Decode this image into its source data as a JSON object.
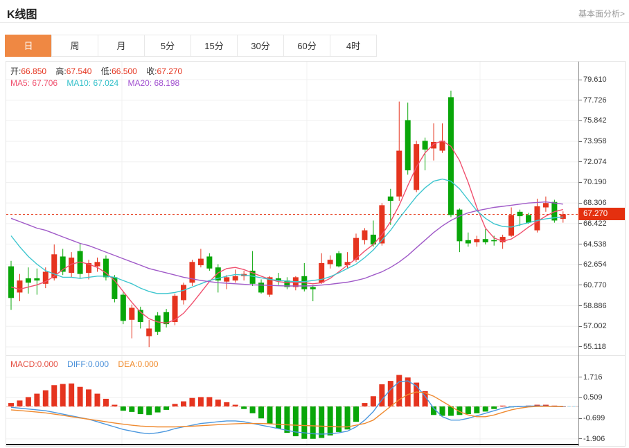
{
  "header": {
    "title": "K线图",
    "link": "基本面分析>"
  },
  "tabs": {
    "items": [
      "日",
      "周",
      "月",
      "5分",
      "15分",
      "30分",
      "60分",
      "4时"
    ],
    "selected_index": 0
  },
  "ohlc": {
    "o_label": "开:",
    "o": "66.850",
    "h_label": "高:",
    "h": "67.540",
    "l_label": "低:",
    "l": "66.500",
    "c_label": "收:",
    "c": "67.270"
  },
  "ma_legend": {
    "ma5_label": "MA5:",
    "ma5": "67.706",
    "ma10_label": "MA10:",
    "ma10": "67.024",
    "ma20_label": "MA20:",
    "ma20": "68.198"
  },
  "macd_legend": {
    "macd_label": "MACD:",
    "macd": "0.000",
    "diff_label": "DIFF:",
    "diff": "0.000",
    "dea_label": "DEA:",
    "dea": "0.000"
  },
  "price_axis": {
    "labels": [
      "79.610",
      "77.726",
      "75.842",
      "73.958",
      "72.074",
      "70.190",
      "68.306",
      "66.422",
      "64.538",
      "62.654",
      "60.770",
      "58.886",
      "57.002",
      "55.118"
    ],
    "current_price": "67.270"
  },
  "macd_axis": {
    "labels": [
      "1.716",
      "0.509",
      "-0.699",
      "-1.906"
    ]
  },
  "colors": {
    "up": "#e5341f",
    "down": "#09a609",
    "tag": "#e4300f",
    "ma5": "#f0506e",
    "ma10": "#3ec6cf",
    "ma20": "#a05ac8",
    "diff": "#4a97de",
    "dea": "#ef8a30",
    "tab_accent": "#ef8843",
    "grid": "#f0f0f0",
    "dash_blue": "#8fd0e8"
  },
  "chart_data": {
    "type": "candlestick+macd",
    "title": "K线图",
    "period_selected": "日",
    "main": {
      "ylim": [
        54.4,
        81.2
      ],
      "yticks": [
        79.61,
        77.726,
        75.842,
        73.958,
        72.074,
        70.19,
        68.306,
        66.422,
        64.538,
        62.654,
        60.77,
        58.886,
        57.002,
        55.118
      ],
      "current_price": 67.27,
      "last_ohlc": {
        "open": 66.85,
        "high": 67.54,
        "low": 66.5,
        "close": 67.27
      },
      "ma_last": {
        "ma5": 67.706,
        "ma10": 67.024,
        "ma20": 68.198
      },
      "candles": [
        [
          62.5,
          63.0,
          58.5,
          59.6
        ],
        [
          60.1,
          61.8,
          59.3,
          61.2
        ],
        [
          61.4,
          62.4,
          60.0,
          61.0
        ],
        [
          61.4,
          62.3,
          59.9,
          61.2
        ],
        [
          60.9,
          62.4,
          60.5,
          62.0
        ],
        [
          61.4,
          64.5,
          61.2,
          63.6
        ],
        [
          63.4,
          64.1,
          61.7,
          62.0
        ],
        [
          61.9,
          63.8,
          61.5,
          63.3
        ],
        [
          63.9,
          64.6,
          61.4,
          61.8
        ],
        [
          61.9,
          63.1,
          61.3,
          62.8
        ],
        [
          62.5,
          63.3,
          62.0,
          62.9
        ],
        [
          63.2,
          63.5,
          61.2,
          61.5
        ],
        [
          61.5,
          61.7,
          59.2,
          59.5
        ],
        [
          59.9,
          60.1,
          57.2,
          57.5
        ],
        [
          57.6,
          59.0,
          55.9,
          58.7
        ],
        [
          58.5,
          58.8,
          56.8,
          57.4
        ],
        [
          56.1,
          57.6,
          55.1,
          56.8
        ],
        [
          58.0,
          58.3,
          56.2,
          56.5
        ],
        [
          58.3,
          58.6,
          56.9,
          57.2
        ],
        [
          57.4,
          60.0,
          57.1,
          59.8
        ],
        [
          59.4,
          61.0,
          59.0,
          60.8
        ],
        [
          61.0,
          63.1,
          60.7,
          62.9
        ],
        [
          62.6,
          64.1,
          62.4,
          63.2
        ],
        [
          63.4,
          63.7,
          62.1,
          62.3
        ],
        [
          62.4,
          62.7,
          60.1,
          61.2
        ],
        [
          61.1,
          61.7,
          60.4,
          61.5
        ],
        [
          61.2,
          62.2,
          61.0,
          61.6
        ],
        [
          61.6,
          62.1,
          61.2,
          61.8
        ],
        [
          62.1,
          63.9,
          60.7,
          60.9
        ],
        [
          61.0,
          61.3,
          60.0,
          60.1
        ],
        [
          59.9,
          61.6,
          59.7,
          61.5
        ],
        [
          61.4,
          61.9,
          60.8,
          61.2
        ],
        [
          61.2,
          61.5,
          60.4,
          60.6
        ],
        [
          60.6,
          61.6,
          60.3,
          61.5
        ],
        [
          61.6,
          62.8,
          60.2,
          60.4
        ],
        [
          60.6,
          60.8,
          59.3,
          60.4
        ],
        [
          61.0,
          63.7,
          60.9,
          62.8
        ],
        [
          62.7,
          63.5,
          62.3,
          63.1
        ],
        [
          63.7,
          63.9,
          62.4,
          62.5
        ],
        [
          62.6,
          63.8,
          62.3,
          62.9
        ],
        [
          63.1,
          65.5,
          62.9,
          65.1
        ],
        [
          64.9,
          66.0,
          64.5,
          65.8
        ],
        [
          65.4,
          66.7,
          64.3,
          64.5
        ],
        [
          64.6,
          68.3,
          64.4,
          68.1
        ],
        [
          68.9,
          69.6,
          66.3,
          68.5
        ],
        [
          68.9,
          77.6,
          68.5,
          73.1
        ],
        [
          75.9,
          77.5,
          70.9,
          71.3
        ],
        [
          69.5,
          74.0,
          69.3,
          73.7
        ],
        [
          74.0,
          74.3,
          71.3,
          73.2
        ],
        [
          73.3,
          75.6,
          72.2,
          73.9
        ],
        [
          73.1,
          75.6,
          72.9,
          74.0
        ],
        [
          78.0,
          78.6,
          67.0,
          67.2
        ],
        [
          67.7,
          67.8,
          63.8,
          64.8
        ],
        [
          64.9,
          65.6,
          64.3,
          64.6
        ],
        [
          64.7,
          65.3,
          64.3,
          65.0
        ],
        [
          65.0,
          65.9,
          64.5,
          64.7
        ],
        [
          64.9,
          65.3,
          64.4,
          64.8
        ],
        [
          64.7,
          65.4,
          64.1,
          65.2
        ],
        [
          65.3,
          67.9,
          65.2,
          67.2
        ],
        [
          67.5,
          67.7,
          66.2,
          67.1
        ],
        [
          67.2,
          67.4,
          66.4,
          66.5
        ],
        [
          65.8,
          68.7,
          65.6,
          68.0
        ],
        [
          67.9,
          68.9,
          67.5,
          68.3
        ],
        [
          68.4,
          68.6,
          66.5,
          66.7
        ],
        [
          66.85,
          67.54,
          66.5,
          67.27
        ]
      ],
      "ma5": [
        60.6,
        60.4,
        60.6,
        60.8,
        61.1,
        61.6,
        62.2,
        62.7,
        62.9,
        62.7,
        62.4,
        61.9,
        61.2,
        60.2,
        59.2,
        58.3,
        57.7,
        57.4,
        57.3,
        57.6,
        58.2,
        59.1,
        60.1,
        61.1,
        61.9,
        62.3,
        62.4,
        62.2,
        61.9,
        61.6,
        61.3,
        61.1,
        61.0,
        61.0,
        61.0,
        60.9,
        61.0,
        61.4,
        62.0,
        62.6,
        63.2,
        63.9,
        64.5,
        65.4,
        66.6,
        68.1,
        69.9,
        71.6,
        72.9,
        73.7,
        74.0,
        73.5,
        72.2,
        70.2,
        67.9,
        66.0,
        65.1,
        64.8,
        65.0,
        65.5,
        66.1,
        66.6,
        67.1,
        67.5,
        67.706
      ],
      "ma10": [
        65.3,
        64.3,
        63.4,
        62.7,
        62.1,
        61.8,
        61.5,
        61.5,
        61.4,
        61.5,
        61.6,
        61.6,
        61.5,
        61.2,
        60.9,
        60.5,
        60.2,
        60.0,
        60.0,
        60.1,
        60.3,
        60.6,
        60.9,
        61.2,
        61.4,
        61.6,
        61.75,
        61.7,
        61.6,
        61.45,
        61.3,
        61.2,
        61.15,
        61.1,
        61.1,
        61.2,
        61.3,
        61.55,
        61.9,
        62.3,
        62.7,
        63.3,
        64.0,
        64.9,
        65.8,
        66.9,
        67.9,
        68.9,
        69.7,
        70.3,
        70.5,
        70.3,
        69.6,
        68.6,
        67.6,
        66.9,
        66.4,
        66.15,
        66.1,
        66.3,
        66.5,
        66.7,
        66.85,
        66.95,
        67.024
      ],
      "ma20": [
        66.9,
        66.6,
        66.3,
        66.0,
        65.8,
        65.5,
        65.2,
        64.9,
        64.6,
        64.4,
        64.1,
        63.8,
        63.5,
        63.2,
        62.9,
        62.6,
        62.3,
        62.1,
        61.9,
        61.7,
        61.5,
        61.35,
        61.2,
        61.1,
        61.0,
        60.95,
        60.9,
        60.85,
        60.8,
        60.78,
        60.75,
        60.72,
        60.7,
        60.7,
        60.7,
        60.72,
        60.78,
        60.85,
        60.95,
        61.05,
        61.2,
        61.4,
        61.7,
        62.0,
        62.4,
        62.9,
        63.5,
        64.2,
        64.9,
        65.6,
        66.2,
        66.7,
        67.1,
        67.4,
        67.6,
        67.75,
        67.9,
        68.0,
        68.1,
        68.2,
        68.3,
        68.35,
        68.4,
        68.3,
        68.198
      ]
    },
    "macd": {
      "ylim": [
        -2.45,
        3.0
      ],
      "yticks": [
        1.716,
        0.509,
        -0.699,
        -1.906
      ],
      "last_values": {
        "macd": 0.0,
        "diff": 0.0,
        "dea": 0.0
      },
      "histogram": [
        0.2,
        0.35,
        0.55,
        0.75,
        0.95,
        1.25,
        1.32,
        1.35,
        1.15,
        1.0,
        0.75,
        0.45,
        0.1,
        -0.25,
        -0.32,
        -0.45,
        -0.5,
        -0.35,
        -0.2,
        0.15,
        0.3,
        0.5,
        0.55,
        0.55,
        0.4,
        0.25,
        0.1,
        -0.15,
        -0.4,
        -0.7,
        -1.0,
        -1.3,
        -1.55,
        -1.75,
        -1.9,
        -1.9,
        -1.85,
        -1.7,
        -1.5,
        -1.35,
        -0.9,
        0.2,
        0.6,
        1.3,
        1.5,
        1.85,
        1.7,
        1.4,
        0.9,
        -0.5,
        -0.55,
        -0.55,
        -0.5,
        -0.45,
        -0.4,
        -0.3,
        -0.15,
        0.05,
        -0.05,
        0.03,
        0.05,
        0.1,
        0.1,
        0.05,
        0.0
      ],
      "diff": [
        -0.05,
        -0.1,
        -0.15,
        -0.2,
        -0.25,
        -0.35,
        -0.45,
        -0.55,
        -0.65,
        -0.75,
        -0.9,
        -1.05,
        -1.2,
        -1.35,
        -1.45,
        -1.55,
        -1.6,
        -1.55,
        -1.45,
        -1.3,
        -1.2,
        -1.1,
        -1.0,
        -0.95,
        -0.9,
        -0.85,
        -0.85,
        -0.9,
        -1.0,
        -1.1,
        -1.2,
        -1.3,
        -1.4,
        -1.5,
        -1.55,
        -1.6,
        -1.62,
        -1.6,
        -1.55,
        -1.45,
        -1.2,
        -0.8,
        -0.3,
        0.4,
        1.0,
        1.45,
        1.5,
        1.2,
        0.6,
        -0.1,
        -0.6,
        -0.8,
        -0.8,
        -0.7,
        -0.55,
        -0.4,
        -0.25,
        -0.1,
        -0.02,
        0.0,
        0.02,
        0.03,
        0.02,
        0.0,
        0.0
      ],
      "dea": [
        -0.2,
        -0.24,
        -0.28,
        -0.33,
        -0.38,
        -0.45,
        -0.52,
        -0.6,
        -0.68,
        -0.75,
        -0.82,
        -0.9,
        -0.97,
        -1.04,
        -1.1,
        -1.15,
        -1.18,
        -1.2,
        -1.2,
        -1.2,
        -1.18,
        -1.16,
        -1.13,
        -1.1,
        -1.07,
        -1.04,
        -1.02,
        -1.0,
        -1.0,
        -1.0,
        -1.02,
        -1.05,
        -1.08,
        -1.1,
        -1.12,
        -1.14,
        -1.16,
        -1.18,
        -1.2,
        -1.2,
        -1.1,
        -1.0,
        -0.8,
        -0.4,
        0.0,
        0.4,
        0.7,
        0.85,
        0.8,
        0.6,
        0.3,
        0.0,
        -0.3,
        -0.5,
        -0.6,
        -0.6,
        -0.5,
        -0.35,
        -0.2,
        -0.1,
        -0.03,
        0.0,
        0.01,
        0.0,
        0.0
      ]
    }
  }
}
